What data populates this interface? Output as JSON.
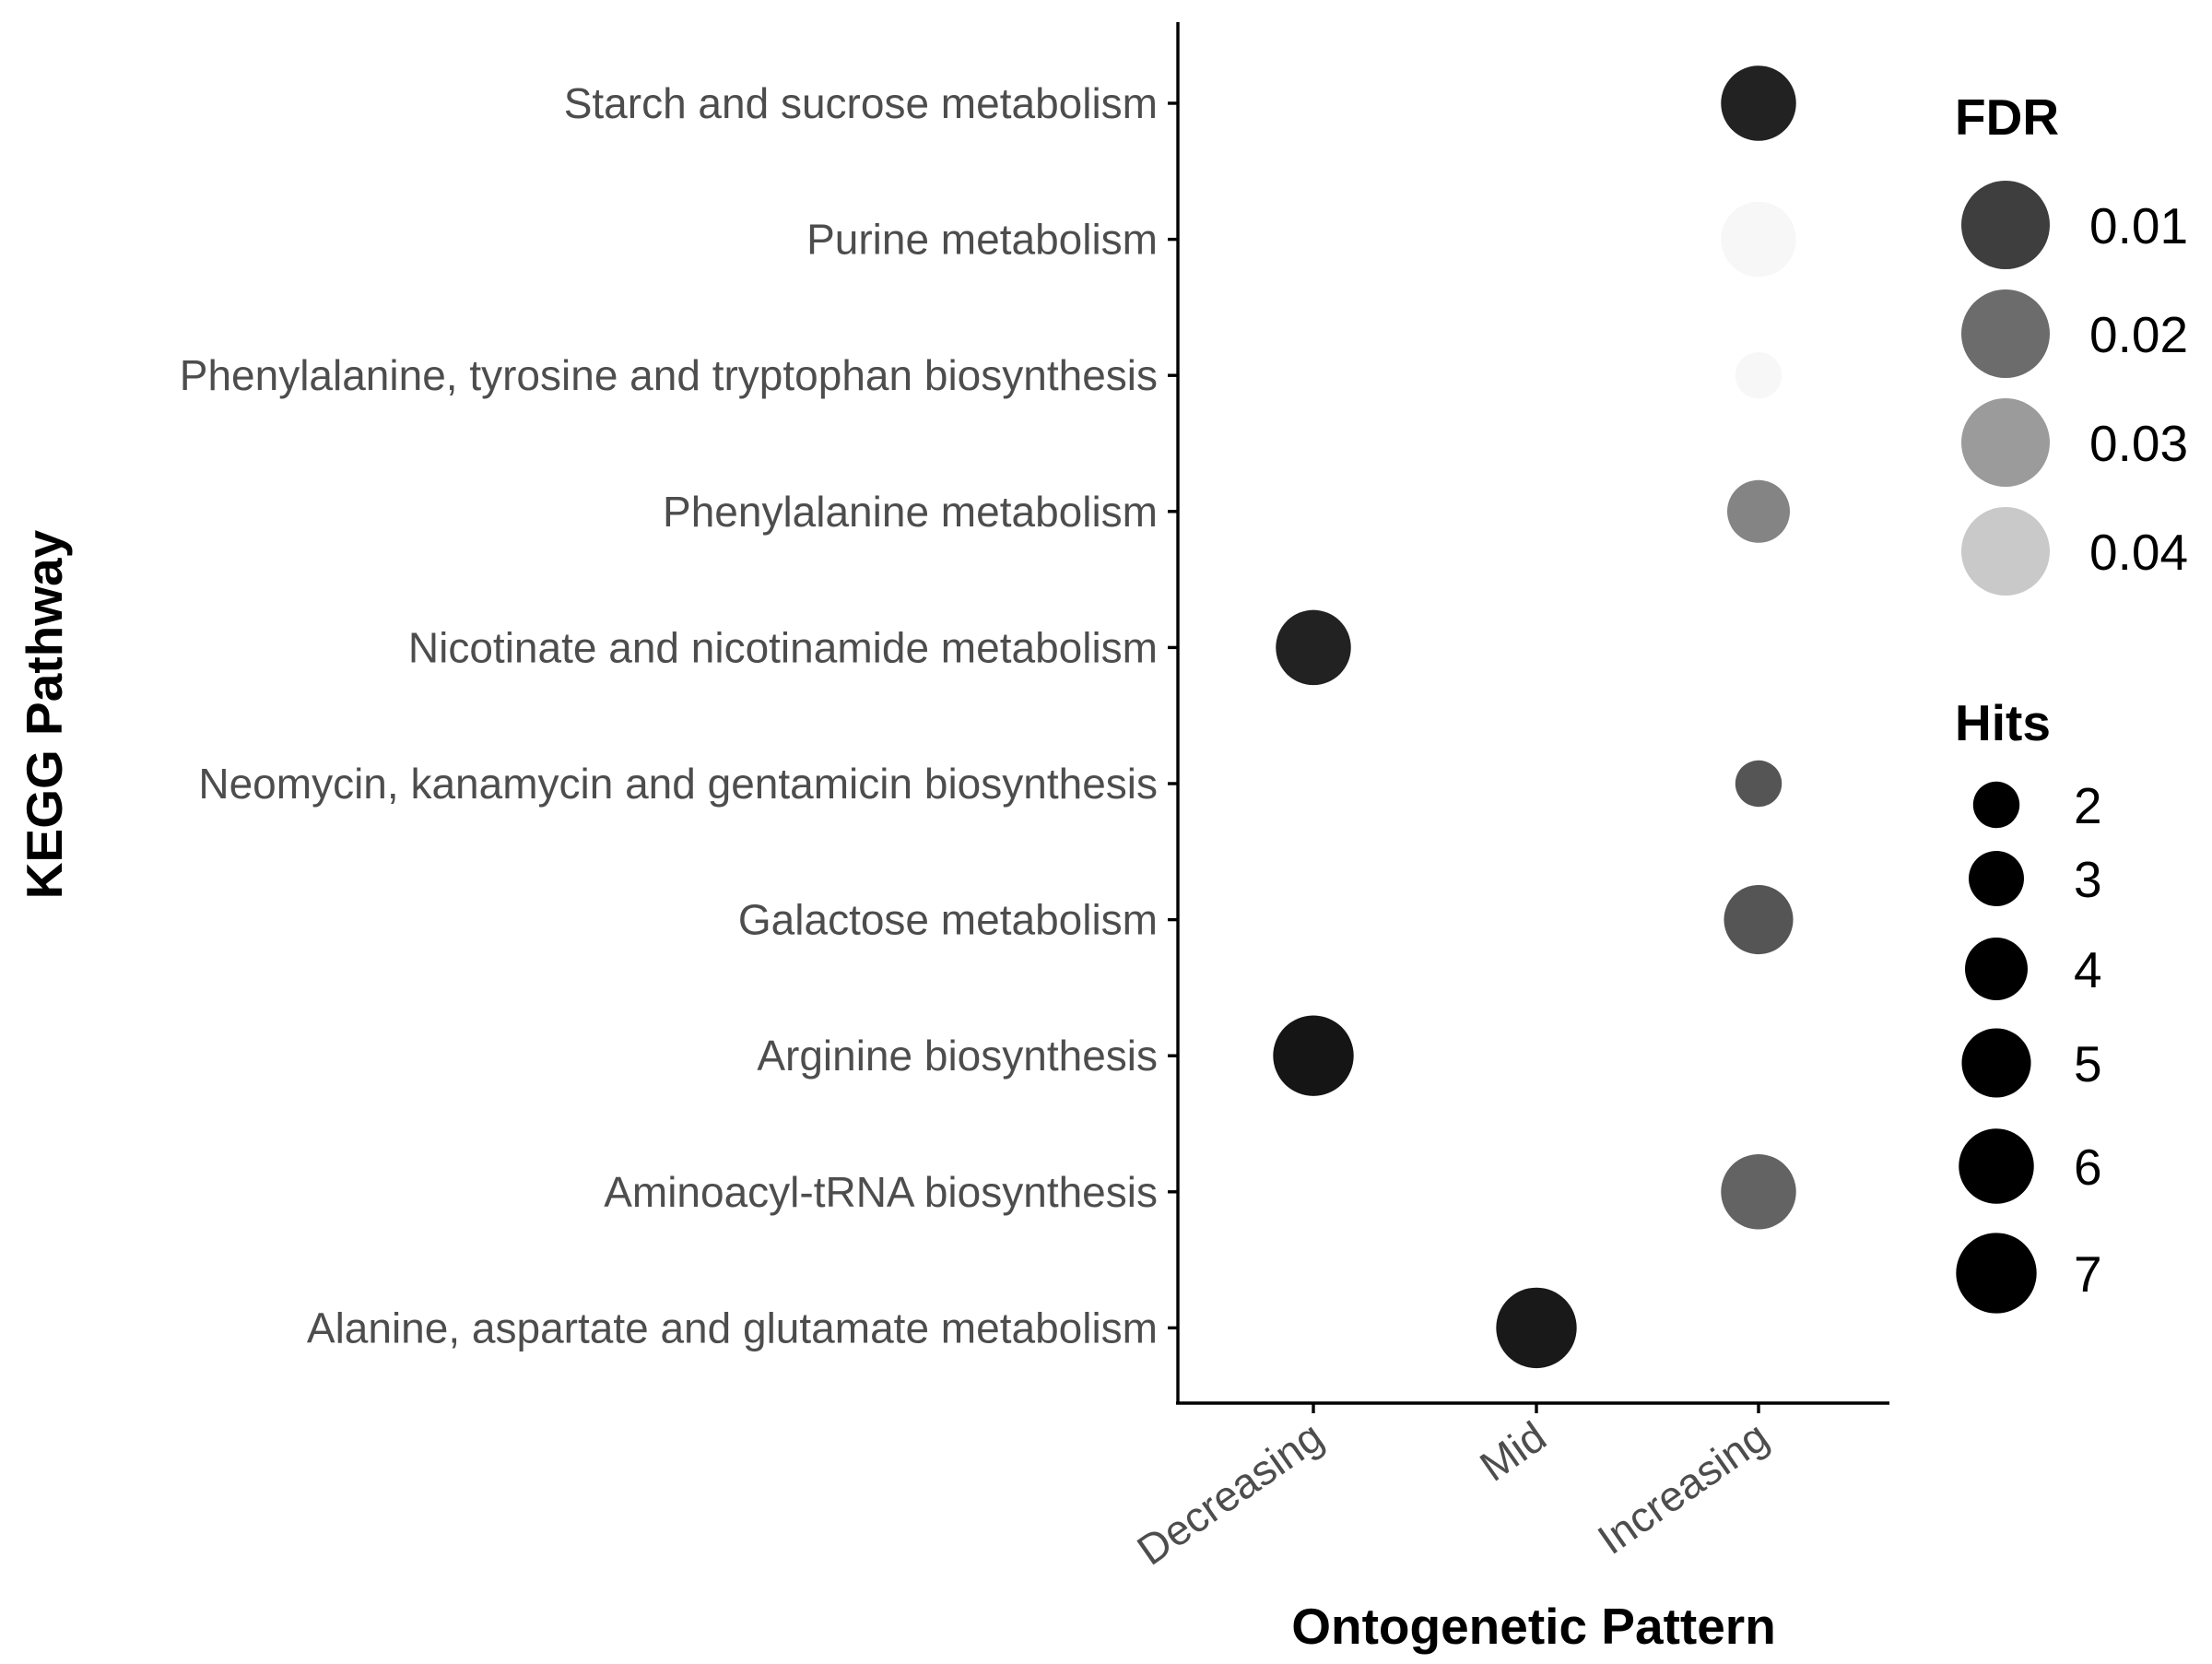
{
  "chart_data": {
    "type": "scatter",
    "xlabel": "Ontogenetic Pattern",
    "ylabel": "KEGG Pathway",
    "x_categories": [
      "Decreasing",
      "Mid",
      "Increasing"
    ],
    "y_categories": [
      "Alanine, aspartate and glutamate metabolism",
      "Aminoacyl-tRNA biosynthesis",
      "Arginine biosynthesis",
      "Galactose metabolism",
      "Neomycin, kanamycin and gentamicin biosynthesis",
      "Nicotinate and nicotinamide metabolism",
      "Phenylalanine metabolism",
      "Phenylalanine, tyrosine and tryptophan biosynthesis",
      "Purine metabolism",
      "Starch and sucrose metabolism"
    ],
    "points": [
      {
        "pathway": "Starch and sucrose metabolism",
        "pattern": "Increasing",
        "fdr": 0.004,
        "hits": 6
      },
      {
        "pathway": "Purine metabolism",
        "pattern": "Increasing",
        "fdr": 0.05,
        "hits": 6
      },
      {
        "pathway": "Phenylalanine, tyrosine and tryptophan biosynthesis",
        "pattern": "Increasing",
        "fdr": 0.05,
        "hits": 2
      },
      {
        "pathway": "Phenylalanine metabolism",
        "pattern": "Increasing",
        "fdr": 0.025,
        "hits": 4
      },
      {
        "pathway": "Nicotinate and nicotinamide metabolism",
        "pattern": "Decreasing",
        "fdr": 0.004,
        "hits": 6
      },
      {
        "pathway": "Neomycin, kanamycin and gentamicin biosynthesis",
        "pattern": "Increasing",
        "fdr": 0.015,
        "hits": 2
      },
      {
        "pathway": "Galactose metabolism",
        "pattern": "Increasing",
        "fdr": 0.015,
        "hits": 5
      },
      {
        "pathway": "Arginine biosynthesis",
        "pattern": "Decreasing",
        "fdr": 0.001,
        "hits": 7
      },
      {
        "pathway": "Aminoacyl-tRNA biosynthesis",
        "pattern": "Increasing",
        "fdr": 0.018,
        "hits": 6
      },
      {
        "pathway": "Alanine, aspartate and glutamate metabolism",
        "pattern": "Mid",
        "fdr": 0.002,
        "hits": 7
      }
    ],
    "color_legend": {
      "title": "FDR",
      "breaks": [
        0.01,
        0.02,
        0.03,
        0.04
      ],
      "labels": [
        "0.01",
        "0.02",
        "0.03",
        "0.04"
      ],
      "color_low": "#101010",
      "color_high": "#f7f7f7",
      "domain": [
        0.0,
        0.05
      ]
    },
    "size_legend": {
      "title": "Hits",
      "breaks": [
        2,
        3,
        4,
        5,
        6,
        7
      ],
      "labels": [
        "2",
        "3",
        "4",
        "5",
        "6",
        "7"
      ],
      "color": "#000000"
    },
    "grid": false,
    "legend_position": "right"
  }
}
